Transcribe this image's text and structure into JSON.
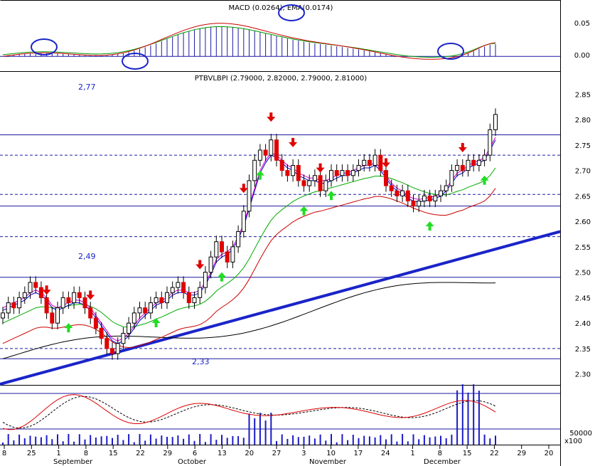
{
  "chart_data": {
    "type": "candlestick",
    "panels": [
      {
        "id": "macd",
        "title": "MACD (0.0264), EMA(0.0174)",
        "y_ticks": [
          "0.05",
          "0.00"
        ],
        "ylim": [
          -0.025,
          0.1
        ]
      },
      {
        "id": "price",
        "title": "PTBVLBPI (2.79000, 2.82000, 2.79000, 2.81000)",
        "y_ticks": [
          "2.85",
          "2.80",
          "2.75",
          "2.70",
          "2.65",
          "2.60",
          "2.55",
          "2.50",
          "2.45",
          "2.40",
          "2.35",
          "2.30"
        ],
        "ylim": [
          2.28,
          2.87
        ],
        "annotations": [
          "2,77",
          "2,49",
          "2,33"
        ],
        "horizontal_levels": [
          2.77,
          2.73,
          2.653,
          2.63,
          2.57,
          2.49,
          2.35,
          2.33
        ],
        "trendline": {
          "from_value": 2.28,
          "to_value": 2.58
        }
      },
      {
        "id": "volume",
        "y_ticks": [
          "50000"
        ],
        "scale_label": "x100"
      }
    ],
    "x_axis": {
      "day_ticks": [
        "8",
        "25",
        "1",
        "8",
        "15",
        "22",
        "29",
        "6",
        "13",
        "20",
        "27",
        "3",
        "10",
        "17",
        "24",
        "1",
        "8",
        "15",
        "22",
        "29",
        "20"
      ],
      "months": [
        "September",
        "October",
        "November",
        "December"
      ]
    },
    "candles": {
      "close": [
        2.42,
        2.44,
        2.43,
        2.45,
        2.46,
        2.48,
        2.47,
        2.45,
        2.42,
        2.4,
        2.43,
        2.45,
        2.44,
        2.46,
        2.45,
        2.43,
        2.41,
        2.39,
        2.37,
        2.35,
        2.34,
        2.36,
        2.38,
        2.4,
        2.42,
        2.43,
        2.42,
        2.44,
        2.45,
        2.44,
        2.46,
        2.47,
        2.48,
        2.46,
        2.44,
        2.45,
        2.47,
        2.5,
        2.53,
        2.56,
        2.54,
        2.52,
        2.55,
        2.58,
        2.62,
        2.68,
        2.72,
        2.74,
        2.73,
        2.76,
        2.72,
        2.7,
        2.69,
        2.71,
        2.68,
        2.67,
        2.68,
        2.69,
        2.66,
        2.68,
        2.7,
        2.69,
        2.7,
        2.69,
        2.7,
        2.71,
        2.72,
        2.71,
        2.73,
        2.7,
        2.67,
        2.66,
        2.65,
        2.66,
        2.64,
        2.63,
        2.64,
        2.65,
        2.64,
        2.65,
        2.66,
        2.67,
        2.7,
        2.71,
        2.7,
        2.72,
        2.71,
        2.72,
        2.73,
        2.78,
        2.81
      ],
      "ma_short": [
        2.425,
        2.43,
        2.435,
        2.44,
        2.445,
        2.455,
        2.46,
        2.455,
        2.445,
        2.43,
        2.425,
        2.43,
        2.435,
        2.44,
        2.44,
        2.435,
        2.425,
        2.41,
        2.395,
        2.38,
        2.365,
        2.36,
        2.365,
        2.375,
        2.39,
        2.405,
        2.415,
        2.425,
        2.435,
        2.44,
        2.445,
        2.455,
        2.46,
        2.46,
        2.455,
        2.455,
        2.46,
        2.475,
        2.495,
        2.52,
        2.53,
        2.535,
        2.545,
        2.565,
        2.59,
        2.625,
        2.66,
        2.695,
        2.715,
        2.73,
        2.725,
        2.715,
        2.705,
        2.7,
        2.69,
        2.685,
        2.68,
        2.68,
        2.675,
        2.675,
        2.68,
        2.685,
        2.69,
        2.69,
        2.695,
        2.7,
        2.705,
        2.705,
        2.71,
        2.7,
        2.685,
        2.67,
        2.66,
        2.655,
        2.645,
        2.64,
        2.638,
        2.64,
        2.642,
        2.645,
        2.65,
        2.66,
        2.675,
        2.69,
        2.695,
        2.705,
        2.71,
        2.715,
        2.72,
        2.74,
        2.76
      ],
      "ma_long": [
        2.4,
        2.405,
        2.41,
        2.415,
        2.42,
        2.425,
        2.43,
        2.432,
        2.432,
        2.43,
        2.43,
        2.432,
        2.434,
        2.436,
        2.437,
        2.436,
        2.433,
        2.428,
        2.421,
        2.412,
        2.403,
        2.397,
        2.393,
        2.392,
        2.393,
        2.396,
        2.399,
        2.403,
        2.408,
        2.412,
        2.417,
        2.422,
        2.427,
        2.43,
        2.432,
        2.434,
        2.437,
        2.443,
        2.452,
        2.463,
        2.471,
        2.478,
        2.486,
        2.496,
        2.509,
        2.526,
        2.546,
        2.566,
        2.585,
        2.602,
        2.614,
        2.623,
        2.631,
        2.639,
        2.645,
        2.65,
        2.654,
        2.658,
        2.66,
        2.663,
        2.666,
        2.669,
        2.672,
        2.675,
        2.678,
        2.681,
        2.684,
        2.686,
        2.689,
        2.689,
        2.687,
        2.684,
        2.68,
        2.676,
        2.671,
        2.666,
        2.662,
        2.658,
        2.655,
        2.653,
        2.652,
        2.652,
        2.655,
        2.659,
        2.662,
        2.667,
        2.671,
        2.675,
        2.68,
        2.69,
        2.705
      ]
    },
    "stochastic_volume_note": "lower panel shows stochastic lines and volume bars"
  }
}
